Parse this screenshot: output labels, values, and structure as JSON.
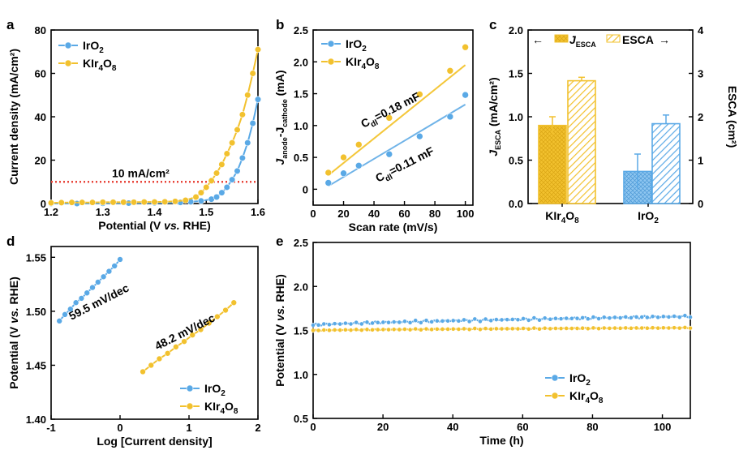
{
  "colors": {
    "iro2": "#5aa9e6",
    "iro2_fill": "#8ec6f0",
    "kir": "#f2c12e",
    "kir_fill": "#f7d46a",
    "ref_line": "#e8463b",
    "fit_iro2": "#6fb3e8",
    "fit_kir": "#f4c73a"
  },
  "chart_data": [
    {
      "panel": "a",
      "type": "line",
      "xlabel_pre": "Potential (V ",
      "xlabel_it": "vs.",
      "xlabel_post": " RHE)",
      "ylabel": "Current density (mA/cm²)",
      "xlim": [
        1.2,
        1.6
      ],
      "ylim": [
        0,
        80
      ],
      "xticks": [
        "1.2",
        "1.3",
        "1.4",
        "1.5",
        "1.6"
      ],
      "yticks": [
        "0",
        "20",
        "40",
        "60",
        "80"
      ],
      "annotation": "10 mA/cm²",
      "ref_value": 10,
      "legend": [
        {
          "base": "IrO",
          "sub": "2",
          "tail": ""
        },
        {
          "base": "KIr",
          "sub": "4",
          "tail": "O",
          "sub2": "8"
        }
      ],
      "series": [
        {
          "name": "IrO2",
          "x": [
            1.2,
            1.25,
            1.3,
            1.35,
            1.4,
            1.45,
            1.47,
            1.49,
            1.51,
            1.52,
            1.53,
            1.54,
            1.55,
            1.56,
            1.57,
            1.58,
            1.59,
            1.6
          ],
          "y": [
            0,
            0,
            0.1,
            0.2,
            0.3,
            0.5,
            0.8,
            1.2,
            2,
            3,
            5,
            7.5,
            11,
            15,
            21,
            28,
            37,
            48
          ]
        },
        {
          "name": "KIr4O8",
          "x": [
            1.2,
            1.22,
            1.24,
            1.26,
            1.28,
            1.3,
            1.32,
            1.34,
            1.36,
            1.38,
            1.4,
            1.42,
            1.44,
            1.46,
            1.48,
            1.49,
            1.5,
            1.51,
            1.52,
            1.53,
            1.54,
            1.55,
            1.56,
            1.57,
            1.58,
            1.59,
            1.6
          ],
          "y": [
            0.3,
            0.4,
            0.5,
            0.5,
            0.5,
            0.6,
            0.6,
            0.6,
            0.6,
            0.7,
            0.7,
            0.8,
            1,
            1.5,
            3,
            5,
            7.5,
            10.5,
            14,
            18,
            23,
            28,
            34,
            41,
            50,
            60,
            71
          ]
        }
      ]
    },
    {
      "panel": "b",
      "type": "scatter",
      "xlabel": "Scan rate (mV/s)",
      "ylabel_parts": [
        "J",
        "anode",
        "-J",
        "cathode",
        " (mA)"
      ],
      "xlim": [
        0,
        105
      ],
      "ylim": [
        -0.25,
        2.5
      ],
      "xticks": [
        "0",
        "20",
        "40",
        "60",
        "80",
        "100"
      ],
      "yticks": [
        "0",
        "0.5",
        "1.0",
        "1.5",
        "2.0",
        "2.5"
      ],
      "legend": [
        {
          "base": "IrO",
          "sub": "2",
          "tail": ""
        },
        {
          "base": "KIr",
          "sub": "4",
          "tail": "O",
          "sub2": "8"
        }
      ],
      "annotations": [
        {
          "base": "C",
          "sub": "dl",
          "rest": "=0.18 mF"
        },
        {
          "base": "C",
          "sub": "dl",
          "rest": "=0.11 mF"
        }
      ],
      "series": [
        {
          "name": "IrO2",
          "x": [
            10,
            20,
            30,
            50,
            70,
            90,
            100
          ],
          "y": [
            0.1,
            0.25,
            0.37,
            0.55,
            0.83,
            1.14,
            1.48
          ],
          "fit": [
            [
              10,
              0.05
            ],
            [
              100,
              1.33
            ]
          ]
        },
        {
          "name": "KIr4O8",
          "x": [
            10,
            20,
            30,
            50,
            70,
            90,
            100
          ],
          "y": [
            0.26,
            0.5,
            0.7,
            1.12,
            1.49,
            1.86,
            2.23
          ],
          "fit": [
            [
              10,
              0.22
            ],
            [
              100,
              1.95
            ]
          ]
        }
      ]
    },
    {
      "panel": "c",
      "type": "bar",
      "categories": [
        {
          "base": "KIr",
          "sub": "4",
          "tail": "O",
          "sub2": "8"
        },
        {
          "base": "IrO",
          "sub": "2",
          "tail": ""
        }
      ],
      "left_ylabel_parts": [
        "J",
        "ESCA",
        " (mA/cm²)"
      ],
      "right_ylabel": "ESCA (cm²)",
      "left_ylim": [
        0,
        2.0
      ],
      "right_ylim": [
        0,
        4
      ],
      "left_yticks": [
        "0.0",
        "0.5",
        "1.0",
        "1.5",
        "2.0"
      ],
      "right_yticks": [
        "0",
        "1",
        "2",
        "3",
        "4"
      ],
      "legend_arrow_left": "←",
      "legend_arrow_right": "→",
      "legend_jesca": [
        "J",
        "ESCA"
      ],
      "legend_esca": "ESCA",
      "series": [
        {
          "name": "JESCA",
          "axis": "left",
          "values": [
            0.9,
            0.37
          ],
          "errors": [
            0.1,
            0.2
          ]
        },
        {
          "name": "ESCA",
          "axis": "right",
          "values": [
            2.83,
            1.84
          ],
          "errors": [
            0.08,
            0.2
          ]
        }
      ]
    },
    {
      "panel": "d",
      "type": "scatter",
      "xlabel": "Log [Current density]",
      "ylabel_pre": "Potential (V ",
      "ylabel_it": "vs.",
      "ylabel_post": " RHE)",
      "xlim": [
        -1,
        2
      ],
      "ylim": [
        1.4,
        1.56
      ],
      "xticks": [
        "-1",
        "0",
        "1",
        "2"
      ],
      "yticks": [
        "1.40",
        "1.45",
        "1.50",
        "1.55"
      ],
      "legend": [
        {
          "base": "IrO",
          "sub": "2",
          "tail": ""
        },
        {
          "base": "KIr",
          "sub": "4",
          "tail": "O",
          "sub2": "8"
        }
      ],
      "annotations": [
        "59.5 mV/dec",
        "48.2 mV/dec"
      ],
      "series": [
        {
          "name": "IrO2",
          "x": [
            -0.88,
            -0.8,
            -0.72,
            -0.64,
            -0.56,
            -0.48,
            -0.4,
            -0.32,
            -0.24,
            -0.16,
            -0.08,
            0.0
          ],
          "y": [
            1.491,
            1.497,
            1.502,
            1.508,
            1.512,
            1.517,
            1.522,
            1.527,
            1.532,
            1.537,
            1.542,
            1.548
          ]
        },
        {
          "name": "KIr4O8",
          "x": [
            0.33,
            0.45,
            0.57,
            0.69,
            0.81,
            0.93,
            1.05,
            1.17,
            1.29,
            1.41,
            1.53,
            1.65
          ],
          "y": [
            1.444,
            1.45,
            1.456,
            1.461,
            1.467,
            1.472,
            1.478,
            1.483,
            1.489,
            1.495,
            1.501,
            1.508
          ]
        }
      ]
    },
    {
      "panel": "e",
      "type": "line",
      "xlabel": "Time (h)",
      "ylabel_pre": "Potential (V ",
      "ylabel_it": "vs.",
      "ylabel_post": " RHE)",
      "xlim": [
        0,
        108
      ],
      "ylim": [
        0.5,
        2.5
      ],
      "xticks": [
        "0",
        "20",
        "40",
        "60",
        "80",
        "100"
      ],
      "yticks": [
        "0.5",
        "1.0",
        "1.5",
        "2.0",
        "2.5"
      ],
      "legend": [
        {
          "base": "IrO",
          "sub": "2",
          "tail": ""
        },
        {
          "base": "KIr",
          "sub": "4",
          "tail": "O",
          "sub2": "8"
        }
      ],
      "series": [
        {
          "name": "IrO2",
          "start": 1.56,
          "end": 1.66,
          "wobble": 0.015
        },
        {
          "name": "KIr4O8",
          "start": 1.5,
          "end": 1.53,
          "wobble": 0.006
        }
      ]
    }
  ],
  "panel_letters": [
    "a",
    "b",
    "c",
    "d",
    "e"
  ]
}
